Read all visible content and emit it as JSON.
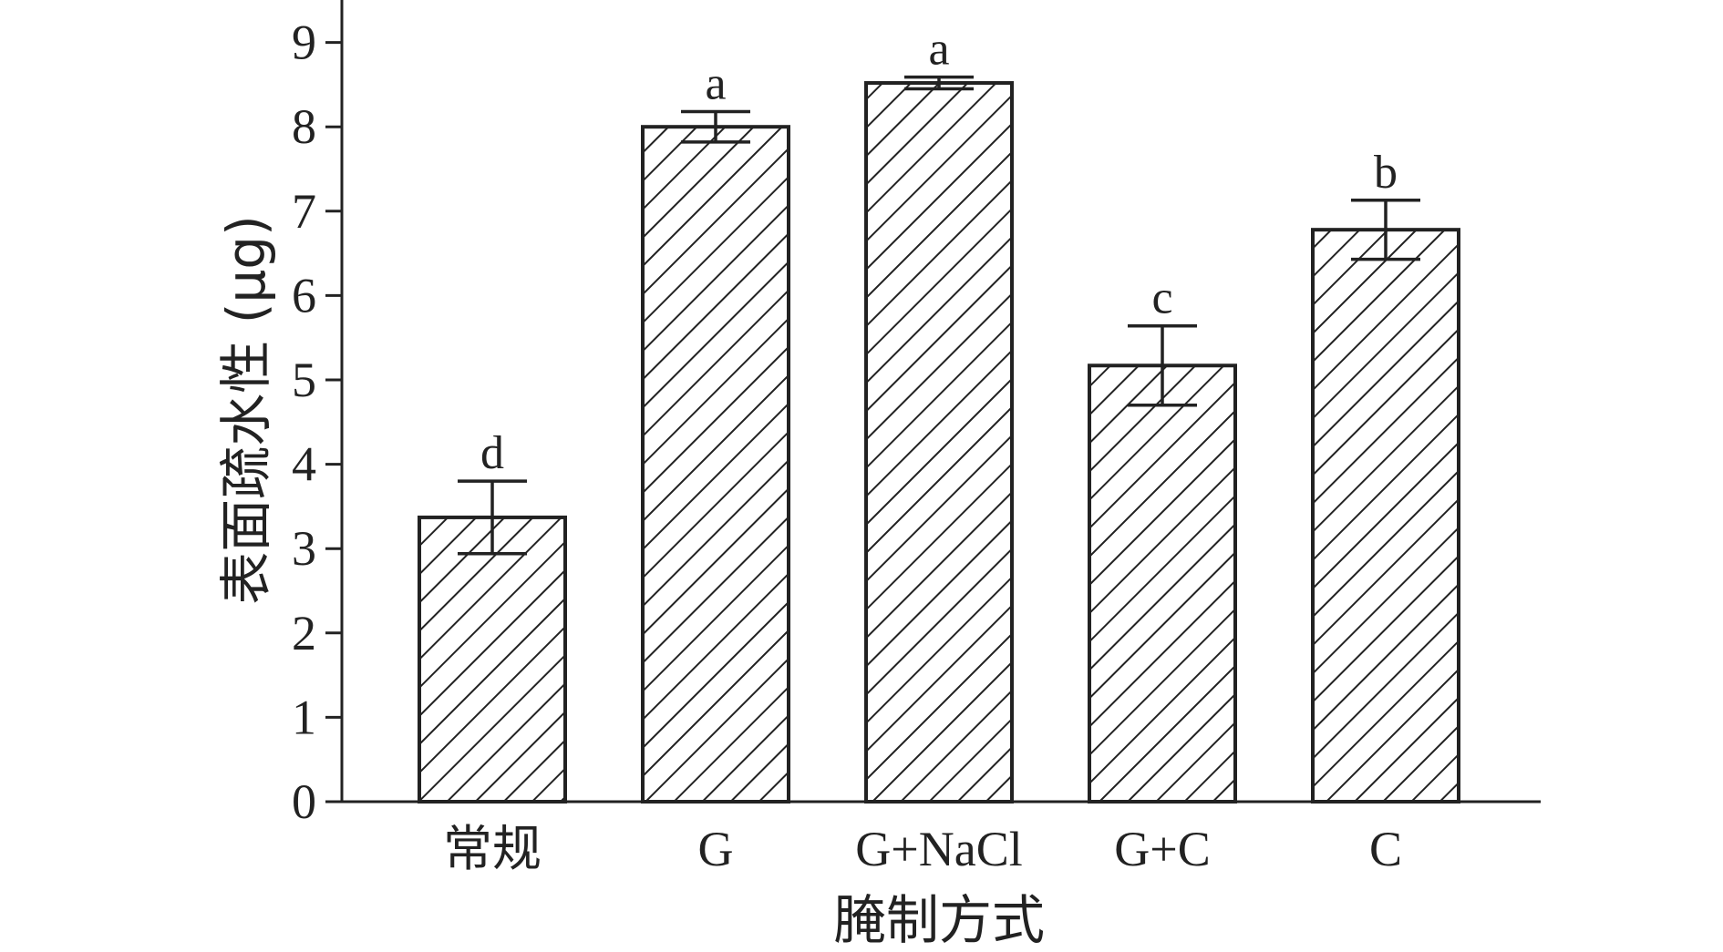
{
  "chart_data": {
    "type": "bar",
    "title": "",
    "xlabel": "腌制方式",
    "ylabel": "表面疏水性 (μg)",
    "ylim": [
      0,
      9.5
    ],
    "yticks": [
      0,
      1,
      2,
      3,
      4,
      5,
      6,
      7,
      8,
      9
    ],
    "ytick_labels": [
      "0",
      "1",
      "2",
      "3",
      "4",
      "5",
      "6",
      "7",
      "8",
      "9"
    ],
    "grid": false,
    "categories": [
      "常规",
      "G",
      "G+NaCl",
      "G+C",
      "C"
    ],
    "values": [
      3.37,
      8.0,
      8.52,
      5.17,
      6.78
    ],
    "errors": [
      0.43,
      0.18,
      0.07,
      0.47,
      0.35
    ],
    "significance": [
      "d",
      "a",
      "a",
      "c",
      "b"
    ],
    "pattern": "diagonal-hatch",
    "colors": {
      "bar_fill": "#ffffff",
      "hatch": "#222222",
      "stroke": "#222222"
    }
  }
}
